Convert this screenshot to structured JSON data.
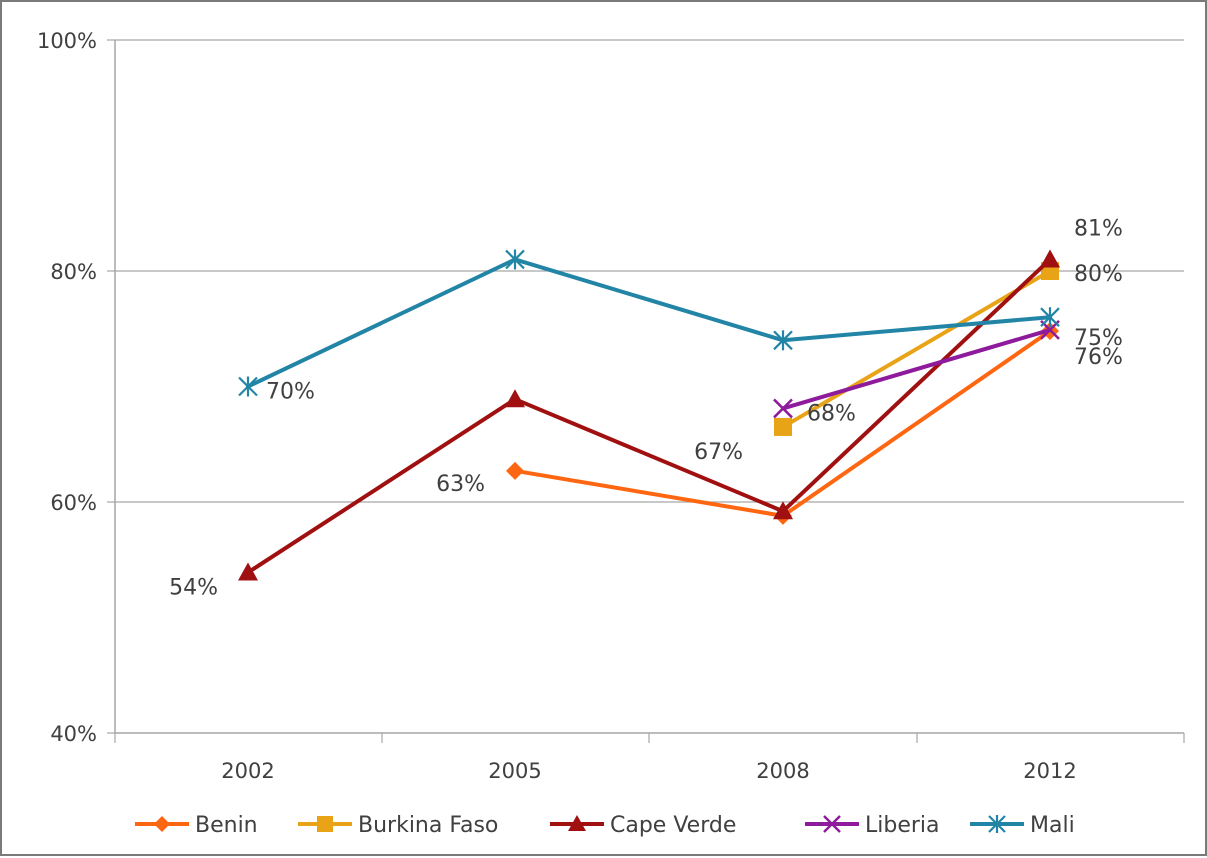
{
  "colors": {
    "grid": "#a6a6a6",
    "axis": "#a6a6a6",
    "text": "#404040",
    "frame": "#7a7a7a"
  },
  "chart_data": {
    "type": "line",
    "categories": [
      "2002",
      "2005",
      "2008",
      "2012"
    ],
    "ylim": [
      40,
      100
    ],
    "yticks": [
      40,
      60,
      80,
      100
    ],
    "ytick_labels": [
      "40%",
      "60%",
      "80%",
      "100%"
    ],
    "grid": true,
    "legend_position": "bottom",
    "series": [
      {
        "name": "Benin",
        "color": "#ff6611",
        "marker": "diamond",
        "values": [
          null,
          62.7,
          58.8,
          74.8
        ]
      },
      {
        "name": "Burkina Faso",
        "color": "#e8a317",
        "marker": "square",
        "values": [
          null,
          null,
          66.5,
          80
        ]
      },
      {
        "name": "Cape Verde",
        "color": "#a01010",
        "marker": "triangle",
        "values": [
          53.9,
          68.9,
          59.2,
          81
        ]
      },
      {
        "name": "Liberia",
        "color": "#8e1a9c",
        "marker": "x",
        "values": [
          null,
          null,
          68.1,
          74.9
        ]
      },
      {
        "name": "Mali",
        "color": "#2385a6",
        "marker": "asterisk",
        "values": [
          70,
          81,
          74,
          76
        ]
      }
    ],
    "annotations": [
      {
        "text": "70%",
        "category": "2002",
        "value": 70
      },
      {
        "text": "54%",
        "category": "2002",
        "value": 53.9
      },
      {
        "text": "63%",
        "category": "2005",
        "value": 62.7
      },
      {
        "text": "67%",
        "category": "2008",
        "value": 66.5
      },
      {
        "text": "68%",
        "category": "2008",
        "value": 68.1
      },
      {
        "text": "81%",
        "category": "2012",
        "value": 81
      },
      {
        "text": "80%",
        "category": "2012",
        "value": 80
      },
      {
        "text": "75%",
        "category": "2012",
        "value": 74.9
      },
      {
        "text": "76%",
        "category": "2012",
        "value": 76
      }
    ]
  }
}
